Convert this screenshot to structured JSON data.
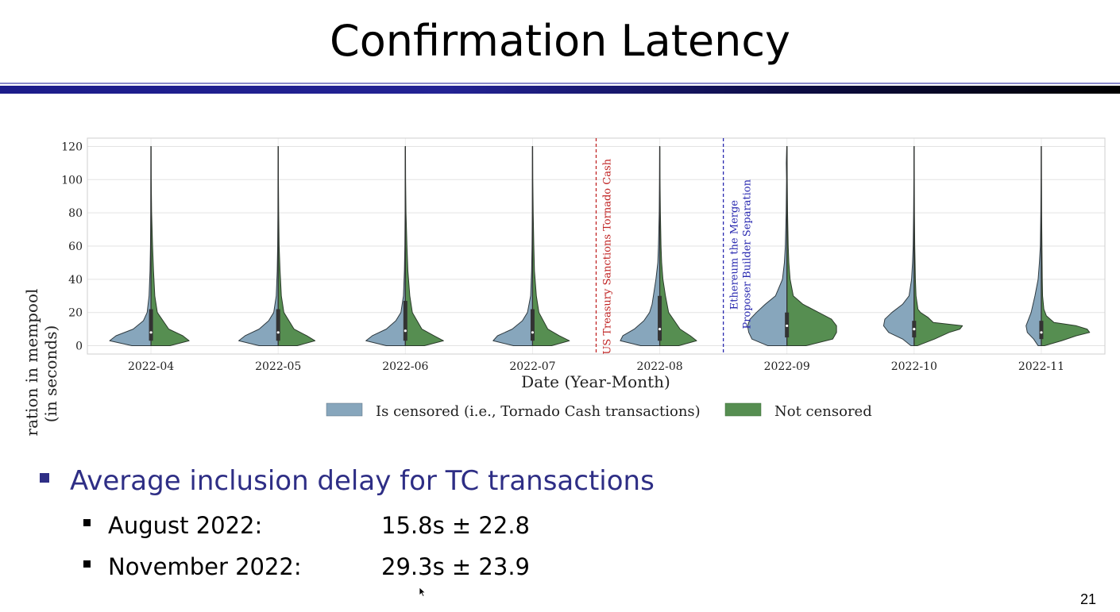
{
  "slide": {
    "title": "Confirmation Latency",
    "page_number": "21",
    "bullet": "Average inclusion delay for TC transactions",
    "items": [
      {
        "label": "August 2022:",
        "value": "15.8s ± 22.8"
      },
      {
        "label": "November 2022:",
        "value": "29.3s ± 23.9"
      }
    ]
  },
  "chart_data": {
    "type": "violin",
    "xlabel": "Date (Year-Month)",
    "ylabel_line1": "Duration in mempool",
    "ylabel_line2": "(in seconds)",
    "ylim": [
      -5,
      125
    ],
    "yticks": [
      0,
      20,
      40,
      60,
      80,
      100,
      120
    ],
    "grid": true,
    "legend_placement": "bottom-center",
    "categories": [
      "2022-04",
      "2022-05",
      "2022-06",
      "2022-07",
      "2022-08",
      "2022-09",
      "2022-10",
      "2022-11"
    ],
    "series": [
      {
        "name": "Is censored (i.e., Tornado Cash transactions)",
        "color": "#87a6bc",
        "side": "left"
      },
      {
        "name": "Not censored",
        "color": "#568e51",
        "side": "right"
      }
    ],
    "annotations": [
      {
        "label": "US Treasury Sanctions Tornado Cash",
        "between": [
          "2022-07",
          "2022-08"
        ],
        "color": "#c02424"
      },
      {
        "label": "Ethereum the Merge",
        "label2": "Proposer Builder Separation",
        "between": [
          "2022-08",
          "2022-09"
        ],
        "color": "#2a2ab0"
      }
    ],
    "violins": [
      {
        "category": "2022-04",
        "left": [
          [
            0,
            0.3
          ],
          [
            3,
            0.65
          ],
          [
            6,
            0.55
          ],
          [
            10,
            0.28
          ],
          [
            15,
            0.12
          ],
          [
            20,
            0.06
          ],
          [
            30,
            0.03
          ],
          [
            45,
            0.015
          ],
          [
            60,
            0.008
          ],
          [
            80,
            0.004
          ],
          [
            100,
            0.003
          ],
          [
            120,
            0.002
          ]
        ],
        "right": [
          [
            0,
            0.3
          ],
          [
            3,
            0.6
          ],
          [
            6,
            0.5
          ],
          [
            10,
            0.28
          ],
          [
            20,
            0.1
          ],
          [
            30,
            0.06
          ],
          [
            45,
            0.04
          ],
          [
            60,
            0.025
          ],
          [
            80,
            0.01
          ],
          [
            100,
            0.004
          ],
          [
            120,
            0.002
          ]
        ],
        "box": [
          3,
          22
        ],
        "median": 8
      },
      {
        "category": "2022-05",
        "left": [
          [
            0,
            0.3
          ],
          [
            3,
            0.62
          ],
          [
            6,
            0.52
          ],
          [
            10,
            0.3
          ],
          [
            15,
            0.15
          ],
          [
            20,
            0.07
          ],
          [
            30,
            0.03
          ],
          [
            45,
            0.015
          ],
          [
            60,
            0.008
          ],
          [
            80,
            0.004
          ],
          [
            100,
            0.003
          ],
          [
            120,
            0.002
          ]
        ],
        "right": [
          [
            0,
            0.3
          ],
          [
            3,
            0.58
          ],
          [
            6,
            0.45
          ],
          [
            10,
            0.25
          ],
          [
            20,
            0.09
          ],
          [
            30,
            0.05
          ],
          [
            45,
            0.03
          ],
          [
            60,
            0.015
          ],
          [
            80,
            0.008
          ],
          [
            100,
            0.004
          ],
          [
            120,
            0.002
          ]
        ],
        "box": [
          3,
          22
        ],
        "median": 8
      },
      {
        "category": "2022-06",
        "left": [
          [
            0,
            0.3
          ],
          [
            3,
            0.62
          ],
          [
            6,
            0.52
          ],
          [
            10,
            0.3
          ],
          [
            15,
            0.15
          ],
          [
            20,
            0.07
          ],
          [
            30,
            0.03
          ],
          [
            45,
            0.015
          ],
          [
            60,
            0.008
          ],
          [
            80,
            0.004
          ],
          [
            100,
            0.003
          ],
          [
            120,
            0.002
          ]
        ],
        "right": [
          [
            0,
            0.3
          ],
          [
            3,
            0.6
          ],
          [
            6,
            0.45
          ],
          [
            10,
            0.26
          ],
          [
            20,
            0.11
          ],
          [
            30,
            0.07
          ],
          [
            45,
            0.04
          ],
          [
            60,
            0.025
          ],
          [
            80,
            0.01
          ],
          [
            100,
            0.004
          ],
          [
            120,
            0.002
          ]
        ],
        "box": [
          3,
          27
        ],
        "median": 9
      },
      {
        "category": "2022-07",
        "left": [
          [
            0,
            0.3
          ],
          [
            3,
            0.62
          ],
          [
            6,
            0.55
          ],
          [
            10,
            0.32
          ],
          [
            15,
            0.16
          ],
          [
            20,
            0.08
          ],
          [
            30,
            0.03
          ],
          [
            45,
            0.015
          ],
          [
            60,
            0.008
          ],
          [
            80,
            0.004
          ],
          [
            100,
            0.003
          ],
          [
            120,
            0.002
          ]
        ],
        "right": [
          [
            0,
            0.3
          ],
          [
            3,
            0.58
          ],
          [
            6,
            0.42
          ],
          [
            10,
            0.24
          ],
          [
            20,
            0.1
          ],
          [
            30,
            0.06
          ],
          [
            45,
            0.03
          ],
          [
            60,
            0.02
          ],
          [
            80,
            0.01
          ],
          [
            100,
            0.004
          ],
          [
            120,
            0.002
          ]
        ],
        "box": [
          3,
          22
        ],
        "median": 8
      },
      {
        "category": "2022-08",
        "left": [
          [
            0,
            0.3
          ],
          [
            3,
            0.62
          ],
          [
            6,
            0.58
          ],
          [
            10,
            0.4
          ],
          [
            15,
            0.25
          ],
          [
            20,
            0.16
          ],
          [
            25,
            0.12
          ],
          [
            30,
            0.1
          ],
          [
            40,
            0.06
          ],
          [
            50,
            0.03
          ],
          [
            60,
            0.02
          ],
          [
            80,
            0.008
          ],
          [
            100,
            0.004
          ],
          [
            120,
            0.002
          ]
        ],
        "right": [
          [
            0,
            0.3
          ],
          [
            3,
            0.58
          ],
          [
            6,
            0.48
          ],
          [
            10,
            0.32
          ],
          [
            20,
            0.14
          ],
          [
            30,
            0.09
          ],
          [
            40,
            0.05
          ],
          [
            50,
            0.03
          ],
          [
            60,
            0.02
          ],
          [
            80,
            0.01
          ],
          [
            100,
            0.004
          ],
          [
            120,
            0.002
          ]
        ],
        "box": [
          3,
          30
        ],
        "median": 10
      },
      {
        "category": "2022-09",
        "left": [
          [
            0,
            0.3
          ],
          [
            4,
            0.55
          ],
          [
            8,
            0.6
          ],
          [
            12,
            0.62
          ],
          [
            16,
            0.58
          ],
          [
            20,
            0.48
          ],
          [
            25,
            0.34
          ],
          [
            30,
            0.18
          ],
          [
            40,
            0.07
          ],
          [
            50,
            0.04
          ],
          [
            60,
            0.025
          ],
          [
            80,
            0.012
          ],
          [
            100,
            0.006
          ],
          [
            110,
            0.01
          ],
          [
            120,
            0.003
          ]
        ],
        "right": [
          [
            0,
            0.3
          ],
          [
            4,
            0.72
          ],
          [
            8,
            0.78
          ],
          [
            12,
            0.78
          ],
          [
            16,
            0.7
          ],
          [
            20,
            0.5
          ],
          [
            25,
            0.25
          ],
          [
            30,
            0.1
          ],
          [
            40,
            0.05
          ],
          [
            50,
            0.03
          ],
          [
            60,
            0.02
          ],
          [
            80,
            0.01
          ],
          [
            100,
            0.005
          ],
          [
            120,
            0.003
          ]
        ],
        "box": [
          5,
          20
        ],
        "median": 12
      },
      {
        "category": "2022-10",
        "left": [
          [
            0,
            0.05
          ],
          [
            4,
            0.18
          ],
          [
            8,
            0.4
          ],
          [
            12,
            0.48
          ],
          [
            16,
            0.46
          ],
          [
            20,
            0.35
          ],
          [
            25,
            0.18
          ],
          [
            30,
            0.08
          ],
          [
            40,
            0.04
          ],
          [
            50,
            0.025
          ],
          [
            60,
            0.015
          ],
          [
            80,
            0.008
          ],
          [
            100,
            0.004
          ],
          [
            120,
            0.002
          ]
        ],
        "right": [
          [
            0,
            0.05
          ],
          [
            4,
            0.32
          ],
          [
            8,
            0.55
          ],
          [
            10,
            0.72
          ],
          [
            12,
            0.76
          ],
          [
            14,
            0.3
          ],
          [
            17,
            0.22
          ],
          [
            20,
            0.1
          ],
          [
            22,
            0.06
          ],
          [
            30,
            0.03
          ],
          [
            40,
            0.02
          ],
          [
            60,
            0.01
          ],
          [
            80,
            0.005
          ],
          [
            100,
            0.003
          ],
          [
            120,
            0.002
          ]
        ],
        "box": [
          5,
          15
        ],
        "median": 10
      },
      {
        "category": "2022-11",
        "left": [
          [
            0,
            0.05
          ],
          [
            4,
            0.12
          ],
          [
            8,
            0.22
          ],
          [
            12,
            0.24
          ],
          [
            16,
            0.2
          ],
          [
            20,
            0.16
          ],
          [
            25,
            0.13
          ],
          [
            30,
            0.1
          ],
          [
            40,
            0.05
          ],
          [
            50,
            0.03
          ],
          [
            60,
            0.015
          ],
          [
            80,
            0.008
          ],
          [
            100,
            0.004
          ],
          [
            120,
            0.002
          ]
        ],
        "right": [
          [
            0,
            0.05
          ],
          [
            3,
            0.32
          ],
          [
            6,
            0.55
          ],
          [
            8,
            0.76
          ],
          [
            10,
            0.72
          ],
          [
            12,
            0.55
          ],
          [
            14,
            0.2
          ],
          [
            18,
            0.08
          ],
          [
            22,
            0.04
          ],
          [
            30,
            0.02
          ],
          [
            40,
            0.015
          ],
          [
            60,
            0.01
          ],
          [
            80,
            0.005
          ],
          [
            100,
            0.003
          ],
          [
            120,
            0.002
          ]
        ],
        "box": [
          4,
          15
        ],
        "median": 8
      }
    ]
  }
}
